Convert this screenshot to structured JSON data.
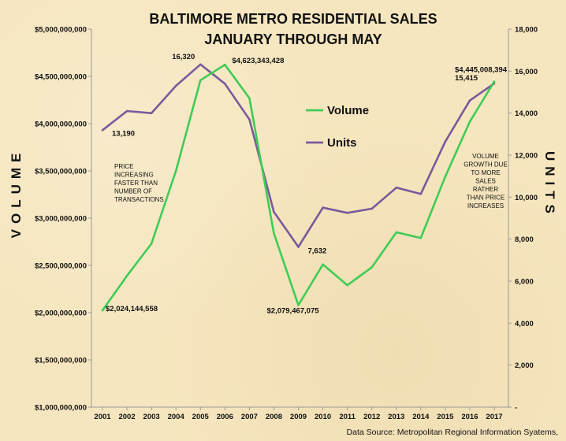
{
  "chart_data": {
    "type": "line",
    "title": [
      "BALTIMORE METRO RESIDENTIAL SALES",
      "JANUARY THROUGH MAY"
    ],
    "ylabel_left": "VOLUME",
    "ylabel_right": "UNITS",
    "x": [
      "2001",
      "2002",
      "2003",
      "2004",
      "2005",
      "2006",
      "2007",
      "2008",
      "2009",
      "2010",
      "2011",
      "2012",
      "2013",
      "2014",
      "2015",
      "2016",
      "2017"
    ],
    "left_axis": {
      "ylim": [
        1000000000,
        5000000000
      ],
      "ticks": [
        1000000000,
        1500000000,
        2000000000,
        2500000000,
        3000000000,
        3500000000,
        4000000000,
        4500000000,
        5000000000
      ],
      "tick_labels": [
        "$1,000,000,000",
        "$1,500,000,000",
        "$2,000,000,000",
        "$2,500,000,000",
        "$3,000,000,000",
        "$3,500,000,000",
        "$4,000,000,000",
        "$4,500,000,000",
        "$5,000,000,000"
      ]
    },
    "right_axis": {
      "ylim": [
        0,
        18000
      ],
      "ticks": [
        0,
        2000,
        4000,
        6000,
        8000,
        10000,
        12000,
        14000,
        16000,
        18000
      ],
      "tick_labels": [
        "-",
        "2,000",
        "4,000",
        "6,000",
        "8,000",
        "10,000",
        "12,000",
        "14,000",
        "16,000",
        "18,000"
      ]
    },
    "series": [
      {
        "name": "Volume",
        "axis": "left",
        "color": "#3fcc56",
        "values": [
          2024144558,
          2390000000,
          2730000000,
          3500000000,
          4460000000,
          4623343428,
          4270000000,
          2840000000,
          2079467075,
          2510000000,
          2290000000,
          2480000000,
          2850000000,
          2790000000,
          3440000000,
          4020000000,
          4445008394
        ]
      },
      {
        "name": "Units",
        "axis": "right",
        "color": "#7a5a9c",
        "values": [
          13190,
          14100,
          14000,
          15300,
          16320,
          15400,
          13700,
          9300,
          7632,
          9500,
          9250,
          9450,
          10450,
          10150,
          12650,
          14600,
          15415
        ]
      }
    ],
    "data_labels": [
      {
        "series": "Volume",
        "index": 0,
        "text": "$2,024,144,558"
      },
      {
        "series": "Volume",
        "index": 5,
        "text": "$4,623,343,428"
      },
      {
        "series": "Volume",
        "index": 8,
        "text": "$2,079,467,075"
      },
      {
        "series": "Volume",
        "index": 16,
        "text": "$4,445,008,394"
      },
      {
        "series": "Units",
        "index": 0,
        "text": "13,190"
      },
      {
        "series": "Units",
        "index": 4,
        "text": "16,320"
      },
      {
        "series": "Units",
        "index": 8,
        "text": "7,632"
      },
      {
        "series": "Units",
        "index": 16,
        "text": "15,415"
      }
    ],
    "annotations": [
      [
        "PRICE",
        "INCREASING",
        "FASTER THAN",
        "NUMBER OF",
        "TRANSACTIONS"
      ],
      [
        "VOLUME",
        "GROWTH DUE",
        "TO MORE",
        "SALES",
        "RATHER",
        "THAN PRICE",
        "INCREASES"
      ]
    ],
    "legend": [
      "Volume",
      "Units"
    ],
    "legend_position": "upper-center-right",
    "grid": false,
    "source": "Data Source: Metropolitan Regional Information Syatems,"
  }
}
